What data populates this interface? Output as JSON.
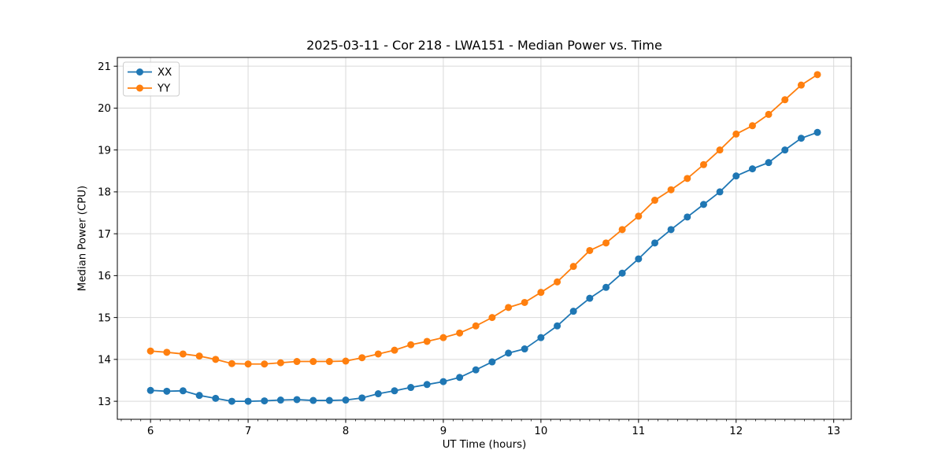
{
  "chart_data": {
    "type": "line",
    "title": "2025-03-11 - Cor 218 - LWA151 - Median Power vs. Time",
    "xlabel": "UT Time (hours)",
    "ylabel": "Median Power (CPU)",
    "xlim": [
      5.66,
      13.18
    ],
    "ylim": [
      12.57,
      21.21
    ],
    "x_ticks": [
      6,
      7,
      8,
      9,
      10,
      11,
      12,
      13
    ],
    "y_ticks": [
      13,
      14,
      15,
      16,
      17,
      18,
      19,
      20,
      21
    ],
    "x_minor_tick_step": 0.1,
    "grid": true,
    "grid_color": "#d9d9d9",
    "legend": {
      "position": "upper-left",
      "entries": [
        "XX",
        "YY"
      ]
    },
    "x": [
      6,
      6.167,
      6.333,
      6.5,
      6.667,
      6.833,
      7,
      7.167,
      7.333,
      7.5,
      7.667,
      7.833,
      8,
      8.167,
      8.333,
      8.5,
      8.667,
      8.833,
      9,
      9.167,
      9.333,
      9.5,
      9.667,
      9.833,
      10,
      10.167,
      10.333,
      10.5,
      10.667,
      10.833,
      11,
      11.167,
      11.333,
      11.5,
      11.667,
      11.833,
      12,
      12.167,
      12.333,
      12.5,
      12.667,
      12.833
    ],
    "series": [
      {
        "name": "XX",
        "color": "#1f77b4",
        "marker": "o",
        "values": [
          13.26,
          13.24,
          13.25,
          13.14,
          13.07,
          13.0,
          13.0,
          13.01,
          13.03,
          13.04,
          13.02,
          13.02,
          13.03,
          13.08,
          13.18,
          13.25,
          13.33,
          13.4,
          13.47,
          13.57,
          13.75,
          13.94,
          14.15,
          14.25,
          14.52,
          14.8,
          15.15,
          15.46,
          15.72,
          16.06,
          16.4,
          16.78,
          17.1,
          17.4,
          17.7,
          18.0,
          18.38,
          18.55,
          18.7,
          19.0,
          19.28,
          19.42
        ]
      },
      {
        "name": "YY",
        "color": "#ff7f0e",
        "marker": "o",
        "values": [
          14.2,
          14.17,
          14.13,
          14.08,
          14.0,
          13.9,
          13.89,
          13.89,
          13.92,
          13.95,
          13.95,
          13.95,
          13.96,
          14.04,
          14.13,
          14.22,
          14.35,
          14.43,
          14.52,
          14.63,
          14.8,
          15.0,
          15.24,
          15.36,
          15.6,
          15.85,
          16.22,
          16.6,
          16.78,
          17.1,
          17.42,
          17.8,
          18.05,
          18.32,
          18.65,
          19.0,
          19.38,
          19.58,
          19.85,
          20.2,
          20.55,
          20.8
        ]
      }
    ]
  }
}
